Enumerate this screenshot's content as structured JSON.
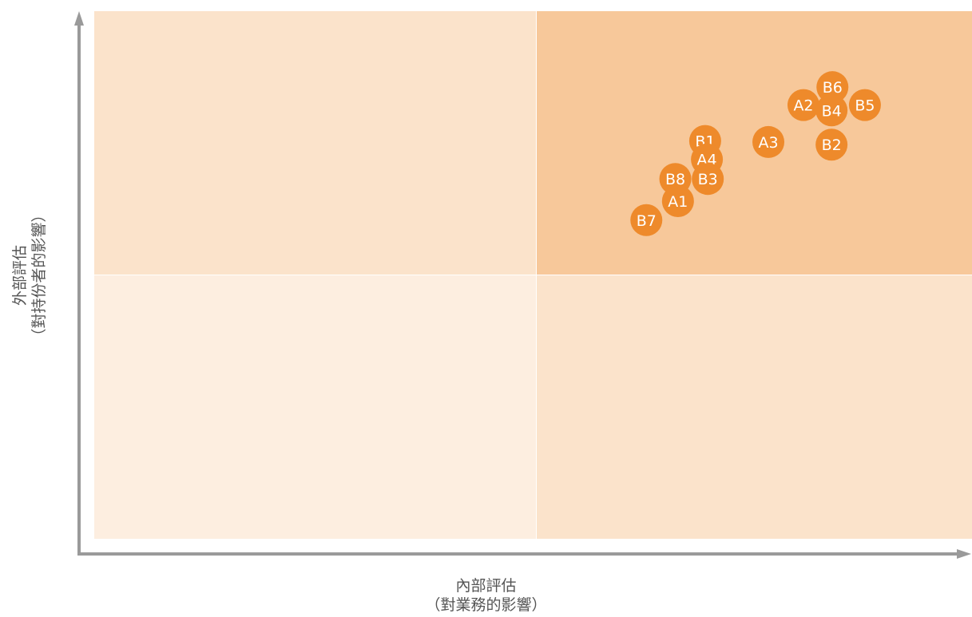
{
  "chart_data": {
    "type": "scatter",
    "xlabel": [
      "內部評估",
      "（對業務的影響）"
    ],
    "ylabel": [
      "外部評估",
      "（對持份者的影響）"
    ],
    "xlim": [
      0,
      1
    ],
    "ylim": [
      0,
      1
    ],
    "grid": false,
    "quadrants": [
      {
        "name": "top-left",
        "color": "#fbe3cb"
      },
      {
        "name": "top-right",
        "color": "#f7c89a"
      },
      {
        "name": "bottom-left",
        "color": "#fdeee0"
      },
      {
        "name": "bottom-right",
        "color": "#fbe3cb"
      }
    ],
    "point_color": "#ee8a2b",
    "axis_color": "#9a9a9a",
    "points": [
      {
        "label": "B6",
        "x": 0.841,
        "y": 0.856
      },
      {
        "label": "A2",
        "x": 0.808,
        "y": 0.822
      },
      {
        "label": "B4",
        "x": 0.84,
        "y": 0.812
      },
      {
        "label": "B5",
        "x": 0.878,
        "y": 0.822
      },
      {
        "label": "A3",
        "x": 0.768,
        "y": 0.752
      },
      {
        "label": "B2",
        "x": 0.84,
        "y": 0.747
      },
      {
        "label": "B1",
        "x": 0.696,
        "y": 0.754
      },
      {
        "label": "A4",
        "x": 0.698,
        "y": 0.719
      },
      {
        "label": "B8",
        "x": 0.662,
        "y": 0.682
      },
      {
        "label": "B3",
        "x": 0.699,
        "y": 0.682
      },
      {
        "label": "A1",
        "x": 0.665,
        "y": 0.64
      },
      {
        "label": "B7",
        "x": 0.629,
        "y": 0.604
      }
    ]
  }
}
